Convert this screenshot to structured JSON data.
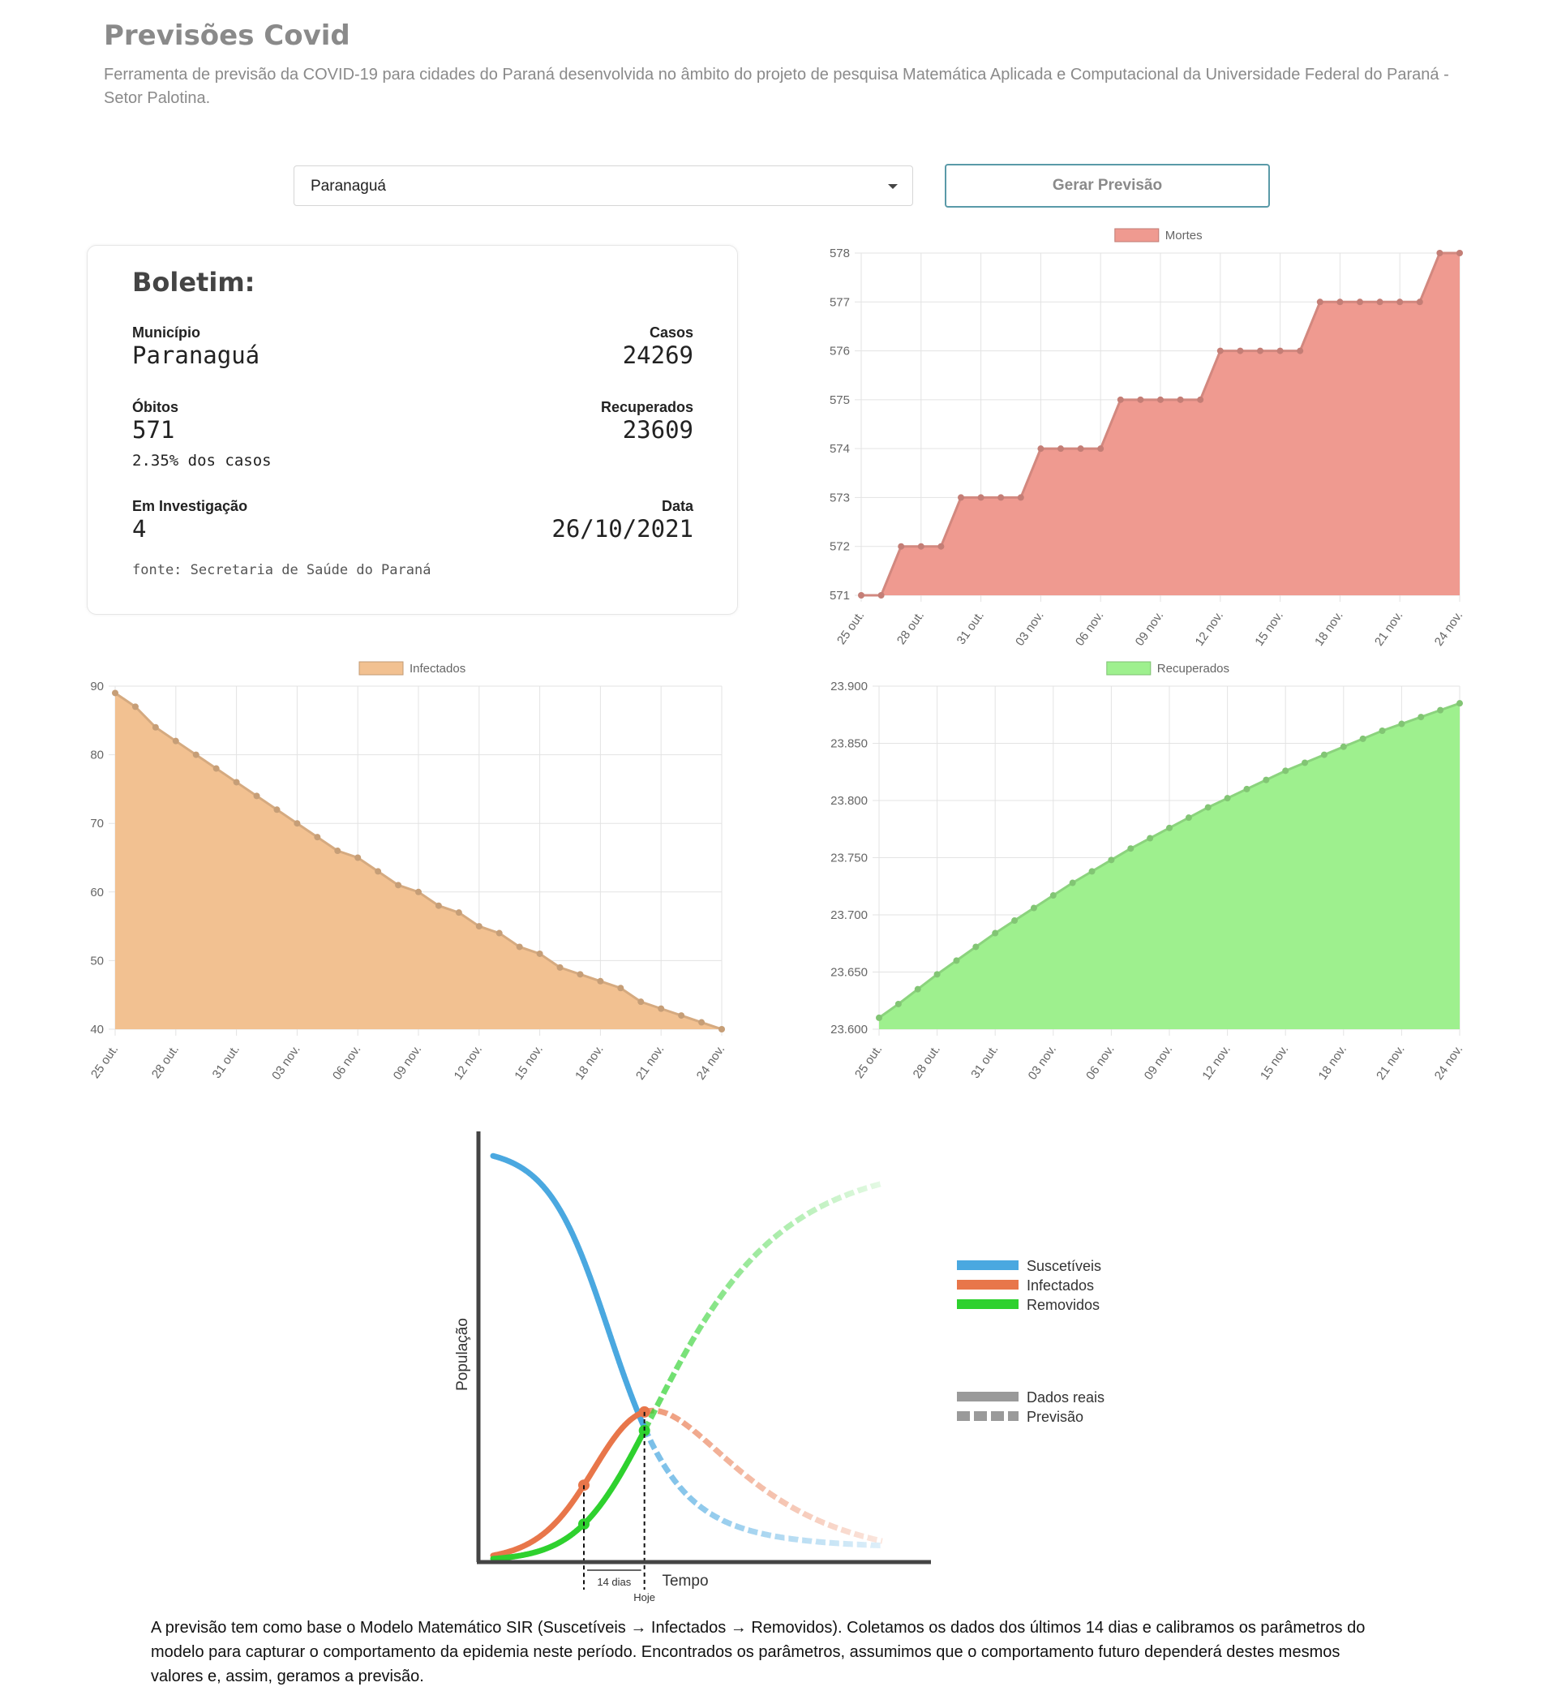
{
  "header": {
    "title": "Previsões Covid",
    "subtitle": "Ferramenta de previsão da COVID-19 para cidades do Paraná desenvolvida no âmbito do projeto de pesquisa Matemática Aplicada e Computacional da Universidade Federal do Paraná - Setor Palotina."
  },
  "controls": {
    "city_select_value": "Paranaguá",
    "generate_button_label": "Gerar Previsão"
  },
  "bulletin": {
    "title": "Boletim:",
    "municipio_label": "Município",
    "municipio_value": "Paranaguá",
    "casos_label": "Casos",
    "casos_value": "24269",
    "obitos_label": "Óbitos",
    "obitos_value": "571",
    "obitos_percent": "2.35% dos casos",
    "recuperados_label": "Recuperados",
    "recuperados_value": "23609",
    "investigacao_label": "Em Investigação",
    "investigacao_value": "4",
    "data_label": "Data",
    "data_value": "26/10/2021",
    "source": "fonte: Secretaria de Saúde do Paraná"
  },
  "chart_data": [
    {
      "type": "area",
      "series": [
        {
          "name": "Mortes",
          "color": "#ef9a90",
          "values": [
            571,
            571,
            572,
            572,
            572,
            573,
            573,
            573,
            573,
            574,
            574,
            574,
            574,
            575,
            575,
            575,
            575,
            575,
            576,
            576,
            576,
            576,
            576,
            577,
            577,
            577,
            577,
            577,
            577,
            578,
            578
          ]
        }
      ],
      "x_ticks": [
        "25 out.",
        "28 out.",
        "31 out.",
        "03 nov.",
        "06 nov.",
        "09 nov.",
        "12 nov.",
        "15 nov.",
        "18 nov.",
        "21 nov.",
        "24 nov."
      ],
      "y_ticks": [
        "571",
        "572",
        "573",
        "574",
        "575",
        "576",
        "577",
        "578"
      ],
      "ylim": [
        571,
        578
      ],
      "grid": true,
      "legend": "top-center"
    },
    {
      "type": "area",
      "series": [
        {
          "name": "Infectados",
          "color": "#f2c191",
          "values": [
            89,
            87,
            84,
            82,
            80,
            78,
            76,
            74,
            72,
            70,
            68,
            66,
            65,
            63,
            61,
            60,
            58,
            57,
            55,
            54,
            52,
            51,
            49,
            48,
            47,
            46,
            44,
            43,
            42,
            41,
            40
          ]
        }
      ],
      "x_ticks": [
        "25 out.",
        "28 out.",
        "31 out.",
        "03 nov.",
        "06 nov.",
        "09 nov.",
        "12 nov.",
        "15 nov.",
        "18 nov.",
        "21 nov.",
        "24 nov."
      ],
      "y_ticks": [
        "40",
        "50",
        "60",
        "70",
        "80",
        "90"
      ],
      "ylim": [
        40,
        90
      ],
      "grid": true,
      "legend": "top-center"
    },
    {
      "type": "area",
      "series": [
        {
          "name": "Recuperados",
          "color": "#9ef08e",
          "values": [
            23610,
            23622,
            23635,
            23648,
            23660,
            23672,
            23684,
            23695,
            23706,
            23717,
            23728,
            23738,
            23748,
            23758,
            23767,
            23776,
            23785,
            23794,
            23802,
            23810,
            23818,
            23826,
            23833,
            23840,
            23847,
            23854,
            23861,
            23867,
            23873,
            23879,
            23885
          ]
        }
      ],
      "x_ticks": [
        "25 out.",
        "28 out.",
        "31 out.",
        "03 nov.",
        "06 nov.",
        "09 nov.",
        "12 nov.",
        "15 nov.",
        "18 nov.",
        "21 nov.",
        "24 nov."
      ],
      "y_ticks": [
        "23.600",
        "23.650",
        "23.700",
        "23.750",
        "23.800",
        "23.850",
        "23.900"
      ],
      "ylim": [
        23600,
        23900
      ],
      "grid": true,
      "legend": "top-center"
    }
  ],
  "sir_diagram": {
    "y_axis_label": "População",
    "x_axis_label": "Tempo",
    "window_label": "14 dias",
    "today_label": "Hoje",
    "legend": {
      "suscetiveis": "Suscetíveis",
      "infectados": "Infectados",
      "removidos": "Removidos",
      "dados_reais": "Dados reais",
      "previsao": "Previsão"
    },
    "colors": {
      "suscetiveis": "#4aa8e0",
      "infectados": "#e8764a",
      "removidos": "#2ed12e",
      "neutral": "#9a9a9a"
    }
  },
  "footnote": "A previsão tem como base o Modelo Matemático SIR (Suscetíveis → Infectados → Removidos). Coletamos os dados dos últimos 14 dias e calibramos os parâmetros do modelo para capturar o comportamento da epidemia neste período. Encontrados os parâmetros, assumimos que o comportamento futuro dependerá destes mesmos valores e, assim, geramos a previsão."
}
